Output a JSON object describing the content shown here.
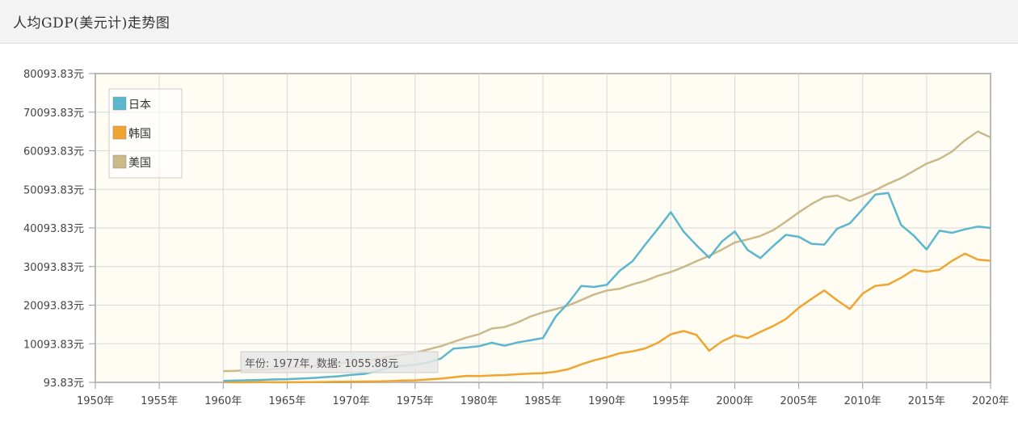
{
  "header": {
    "title": "人均GDP(美元计)走势图"
  },
  "tooltip": {
    "text": "年份: 1977年, 数据: 1055.88元"
  },
  "colors": {
    "japan": "#5bb8cc",
    "korea": "#f0a530",
    "usa": "#cbb98a",
    "plot_bg": "#fffcf3",
    "grid": "#d8d8d8",
    "axis": "#999999"
  },
  "chart_data": {
    "type": "line",
    "title": "",
    "xlabel": "",
    "ylabel": "",
    "xlim": [
      1950,
      2020
    ],
    "ylim": [
      93.83,
      80093.83
    ],
    "grid": true,
    "legend_position": "top-left",
    "x_ticks": [
      "1950年",
      "1955年",
      "1960年",
      "1965年",
      "1970年",
      "1975年",
      "1980年",
      "1985年",
      "1990年",
      "1995年",
      "2000年",
      "2005年",
      "2010年",
      "2015年",
      "2020年"
    ],
    "y_ticks": [
      "93.83元",
      "10093.83元",
      "20093.83元",
      "30093.83元",
      "40093.83元",
      "50093.83元",
      "60093.83元",
      "70093.83元",
      "80093.83元"
    ],
    "x": [
      1960,
      1961,
      1962,
      1963,
      1964,
      1965,
      1966,
      1967,
      1968,
      1969,
      1970,
      1971,
      1972,
      1973,
      1974,
      1975,
      1976,
      1977,
      1978,
      1979,
      1980,
      1981,
      1982,
      1983,
      1984,
      1985,
      1986,
      1987,
      1988,
      1989,
      1990,
      1991,
      1992,
      1993,
      1994,
      1995,
      1996,
      1997,
      1998,
      1999,
      2000,
      2001,
      2002,
      2003,
      2004,
      2005,
      2006,
      2007,
      2008,
      2009,
      2010,
      2011,
      2012,
      2013,
      2014,
      2015,
      2016,
      2017,
      2018,
      2019,
      2020
    ],
    "series": [
      {
        "name": "日本",
        "color_key": "japan",
        "values": [
          480,
          560,
          630,
          720,
          840,
          920,
          1060,
          1230,
          1450,
          1670,
          2040,
          2270,
          2970,
          3990,
          4350,
          4660,
          5200,
          6230,
          8820,
          9100,
          9460,
          10360,
          9580,
          10420,
          10980,
          11580,
          17110,
          20750,
          25050,
          24810,
          25360,
          29000,
          31450,
          35770,
          39930,
          44200,
          39150,
          35630,
          32400,
          36600,
          39170,
          34400,
          32290,
          35400,
          38310,
          37820,
          35990,
          35780,
          39880,
          41290,
          44970,
          48770,
          49150,
          40900,
          38110,
          34520,
          39380,
          38830,
          39730,
          40460,
          40100
        ]
      },
      {
        "name": "韩国",
        "color_key": "korea",
        "values": [
          160,
          95,
          110,
          145,
          125,
          110,
          130,
          160,
          200,
          250,
          280,
          310,
          330,
          410,
          560,
          620,
          830,
          1055.88,
          1420,
          1770,
          1720,
          1880,
          1980,
          2180,
          2380,
          2480,
          2840,
          3530,
          4750,
          5820,
          6610,
          7640,
          8120,
          8880,
          10380,
          12560,
          13400,
          12400,
          8300,
          10700,
          12260,
          11560,
          13170,
          14670,
          16500,
          19400,
          21700,
          23900,
          21350,
          19120,
          23090,
          25100,
          25460,
          27180,
          29250,
          28730,
          29290,
          31600,
          33430,
          31900,
          31600
        ]
      },
      {
        "name": "美国",
        "color_key": "usa",
        "values": [
          3010,
          3070,
          3240,
          3370,
          3570,
          3830,
          4150,
          4330,
          4700,
          5030,
          5230,
          5610,
          6090,
          6730,
          7240,
          7800,
          8590,
          9450,
          10560,
          11670,
          12580,
          14040,
          14410,
          15560,
          17130,
          18240,
          19070,
          20040,
          21420,
          22860,
          23890,
          24340,
          25470,
          26390,
          27690,
          28690,
          29970,
          31460,
          32850,
          34510,
          36330,
          37130,
          38020,
          39490,
          41720,
          44120,
          46300,
          48050,
          48500,
          47100,
          48470,
          49880,
          51540,
          53000,
          54880,
          56760,
          57980,
          59900,
          62790,
          65100,
          63540
        ]
      }
    ]
  }
}
